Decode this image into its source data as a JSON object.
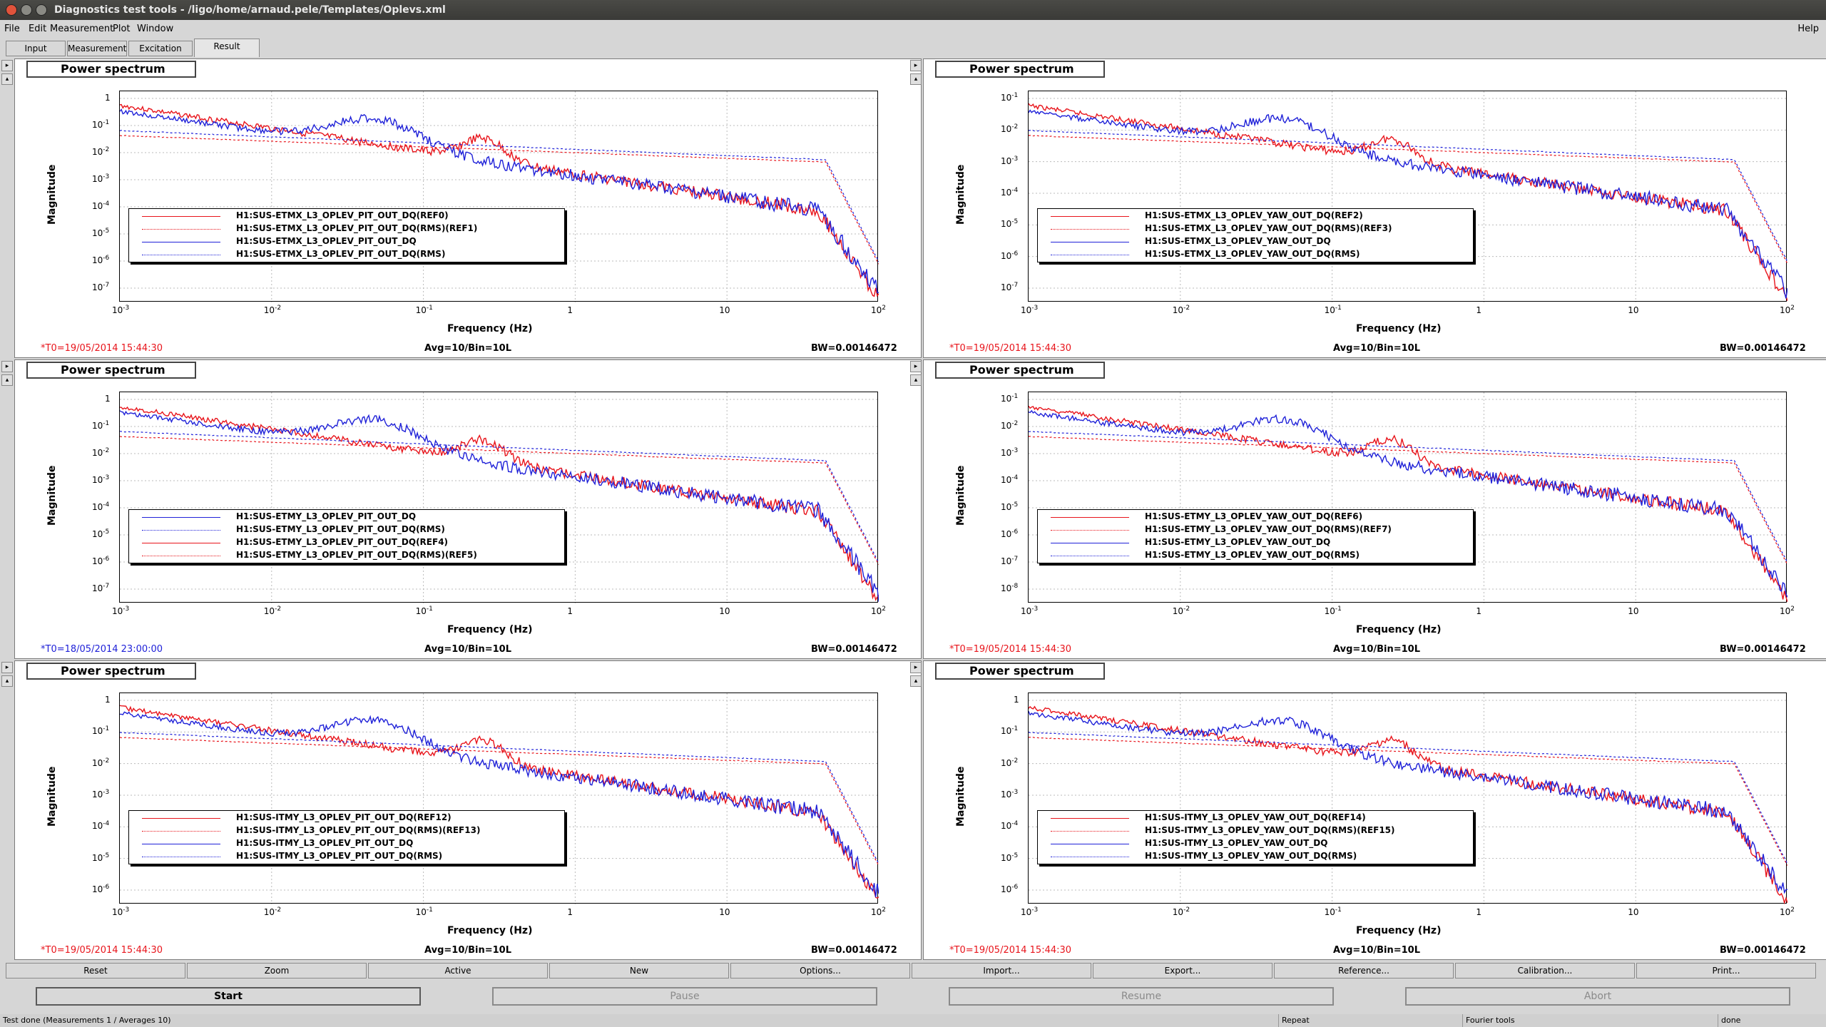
{
  "window": {
    "title": "Diagnostics test tools - /ligo/home/arnaud.pele/Templates/Oplevs.xml",
    "colors": {
      "close": "#e0533b",
      "min": "#8a8a84",
      "max": "#8a8a84"
    }
  },
  "menu": {
    "items": [
      "File",
      "Edit",
      "Measurement",
      "Plot",
      "Window"
    ],
    "help": "Help"
  },
  "tabs": [
    "Input",
    "Measurement",
    "Excitation",
    "Result"
  ],
  "active_tab": "Result",
  "colors": {
    "red": "#e8141b",
    "blue": "#1f21d8"
  },
  "common": {
    "panel_title": "Power spectrum",
    "ylabel": "Magnitude",
    "xlabel": "Frequency (Hz)",
    "avg": "Avg=10/Bin=10L",
    "bw": "BW=0.00146472",
    "x_ticks": [
      "10",
      "10",
      "10",
      "1",
      "10",
      "10"
    ],
    "x_exps": [
      "-3",
      "-2",
      "-1",
      "",
      "",
      "2"
    ]
  },
  "plots": [
    {
      "t0": "*T0=19/05/2014 15:44:30",
      "t0_color": "#e8141b",
      "y_ticks": [
        {
          "m": "1",
          "e": ""
        },
        {
          "m": "10",
          "e": "-1"
        },
        {
          "m": "10",
          "e": "-2"
        },
        {
          "m": "10",
          "e": "-3"
        },
        {
          "m": "10",
          "e": "-4"
        },
        {
          "m": "10",
          "e": "-5"
        },
        {
          "m": "10",
          "e": "-6"
        },
        {
          "m": "10",
          "e": "-7"
        }
      ],
      "legend": [
        {
          "label": "H1:SUS-ETMX_L3_OPLEV_PIT_OUT_DQ(REF0)",
          "color": "red",
          "style": "solid"
        },
        {
          "label": "H1:SUS-ETMX_L3_OPLEV_PIT_OUT_DQ(RMS)(REF1)",
          "color": "red",
          "style": "dotted"
        },
        {
          "label": "H1:SUS-ETMX_L3_OPLEV_PIT_OUT_DQ",
          "color": "blue",
          "style": "solid"
        },
        {
          "label": "H1:SUS-ETMX_L3_OPLEV_PIT_OUT_DQ(RMS)",
          "color": "blue",
          "style": "dotted"
        }
      ]
    },
    {
      "t0": "*T0=19/05/2014 15:44:30",
      "t0_color": "#e8141b",
      "y_ticks": [
        {
          "m": "10",
          "e": "-1"
        },
        {
          "m": "10",
          "e": "-2"
        },
        {
          "m": "10",
          "e": "-3"
        },
        {
          "m": "10",
          "e": "-4"
        },
        {
          "m": "10",
          "e": "-5"
        },
        {
          "m": "10",
          "e": "-6"
        },
        {
          "m": "10",
          "e": "-7"
        }
      ],
      "legend": [
        {
          "label": "H1:SUS-ETMX_L3_OPLEV_YAW_OUT_DQ(REF2)",
          "color": "red",
          "style": "solid"
        },
        {
          "label": "H1:SUS-ETMX_L3_OPLEV_YAW_OUT_DQ(RMS)(REF3)",
          "color": "red",
          "style": "dotted"
        },
        {
          "label": "H1:SUS-ETMX_L3_OPLEV_YAW_OUT_DQ",
          "color": "blue",
          "style": "solid"
        },
        {
          "label": "H1:SUS-ETMX_L3_OPLEV_YAW_OUT_DQ(RMS)",
          "color": "blue",
          "style": "dotted"
        }
      ]
    },
    {
      "t0": "*T0=18/05/2014 23:00:00",
      "t0_color": "#1f21d8",
      "y_ticks": [
        {
          "m": "1",
          "e": ""
        },
        {
          "m": "10",
          "e": "-1"
        },
        {
          "m": "10",
          "e": "-2"
        },
        {
          "m": "10",
          "e": "-3"
        },
        {
          "m": "10",
          "e": "-4"
        },
        {
          "m": "10",
          "e": "-5"
        },
        {
          "m": "10",
          "e": "-6"
        },
        {
          "m": "10",
          "e": "-7"
        }
      ],
      "legend": [
        {
          "label": "H1:SUS-ETMY_L3_OPLEV_PIT_OUT_DQ",
          "color": "blue",
          "style": "solid"
        },
        {
          "label": "H1:SUS-ETMY_L3_OPLEV_PIT_OUT_DQ(RMS)",
          "color": "blue",
          "style": "dotted"
        },
        {
          "label": "H1:SUS-ETMY_L3_OPLEV_PIT_OUT_DQ(REF4)",
          "color": "red",
          "style": "solid"
        },
        {
          "label": "H1:SUS-ETMY_L3_OPLEV_PIT_OUT_DQ(RMS)(REF5)",
          "color": "red",
          "style": "dotted"
        }
      ]
    },
    {
      "t0": "*T0=19/05/2014 15:44:30",
      "t0_color": "#e8141b",
      "y_ticks": [
        {
          "m": "10",
          "e": "-1"
        },
        {
          "m": "10",
          "e": "-2"
        },
        {
          "m": "10",
          "e": "-3"
        },
        {
          "m": "10",
          "e": "-4"
        },
        {
          "m": "10",
          "e": "-5"
        },
        {
          "m": "10",
          "e": "-6"
        },
        {
          "m": "10",
          "e": "-7"
        },
        {
          "m": "10",
          "e": "-8"
        }
      ],
      "legend": [
        {
          "label": "H1:SUS-ETMY_L3_OPLEV_YAW_OUT_DQ(REF6)",
          "color": "red",
          "style": "solid"
        },
        {
          "label": "H1:SUS-ETMY_L3_OPLEV_YAW_OUT_DQ(RMS)(REF7)",
          "color": "red",
          "style": "dotted"
        },
        {
          "label": "H1:SUS-ETMY_L3_OPLEV_YAW_OUT_DQ",
          "color": "blue",
          "style": "solid"
        },
        {
          "label": "H1:SUS-ETMY_L3_OPLEV_YAW_OUT_DQ(RMS)",
          "color": "blue",
          "style": "dotted"
        }
      ]
    },
    {
      "t0": "*T0=19/05/2014 15:44:30",
      "t0_color": "#e8141b",
      "y_ticks": [
        {
          "m": "1",
          "e": ""
        },
        {
          "m": "10",
          "e": "-1"
        },
        {
          "m": "10",
          "e": "-2"
        },
        {
          "m": "10",
          "e": "-3"
        },
        {
          "m": "10",
          "e": "-4"
        },
        {
          "m": "10",
          "e": "-5"
        },
        {
          "m": "10",
          "e": "-6"
        }
      ],
      "legend": [
        {
          "label": "H1:SUS-ITMY_L3_OPLEV_PIT_OUT_DQ(REF12)",
          "color": "red",
          "style": "solid"
        },
        {
          "label": "H1:SUS-ITMY_L3_OPLEV_PIT_OUT_DQ(RMS)(REF13)",
          "color": "red",
          "style": "dotted"
        },
        {
          "label": "H1:SUS-ITMY_L3_OPLEV_PIT_OUT_DQ",
          "color": "blue",
          "style": "solid"
        },
        {
          "label": "H1:SUS-ITMY_L3_OPLEV_PIT_OUT_DQ(RMS)",
          "color": "blue",
          "style": "dotted"
        }
      ]
    },
    {
      "t0": "*T0=19/05/2014 15:44:30",
      "t0_color": "#e8141b",
      "y_ticks": [
        {
          "m": "1",
          "e": ""
        },
        {
          "m": "10",
          "e": "-1"
        },
        {
          "m": "10",
          "e": "-2"
        },
        {
          "m": "10",
          "e": "-3"
        },
        {
          "m": "10",
          "e": "-4"
        },
        {
          "m": "10",
          "e": "-5"
        },
        {
          "m": "10",
          "e": "-6"
        }
      ],
      "legend": [
        {
          "label": "H1:SUS-ITMY_L3_OPLEV_YAW_OUT_DQ(REF14)",
          "color": "red",
          "style": "solid"
        },
        {
          "label": "H1:SUS-ITMY_L3_OPLEV_YAW_OUT_DQ(RMS)(REF15)",
          "color": "red",
          "style": "dotted"
        },
        {
          "label": "H1:SUS-ITMY_L3_OPLEV_YAW_OUT_DQ",
          "color": "blue",
          "style": "solid"
        },
        {
          "label": "H1:SUS-ITMY_L3_OPLEV_YAW_OUT_DQ(RMS)",
          "color": "blue",
          "style": "dotted"
        }
      ]
    }
  ],
  "bottom_buttons": [
    "Reset",
    "Zoom",
    "Active",
    "New",
    "Options...",
    "Import...",
    "Export...",
    "Reference...",
    "Calibration...",
    "Print..."
  ],
  "controls": [
    {
      "label": "Start",
      "enabled": true
    },
    {
      "label": "Pause",
      "enabled": false
    },
    {
      "label": "Resume",
      "enabled": false
    },
    {
      "label": "Abort",
      "enabled": false
    }
  ],
  "status": {
    "message": "Test done (Measurements 1 / Averages 10)",
    "repeat": "Repeat",
    "tool": "Fourier tools",
    "state": "done"
  }
}
